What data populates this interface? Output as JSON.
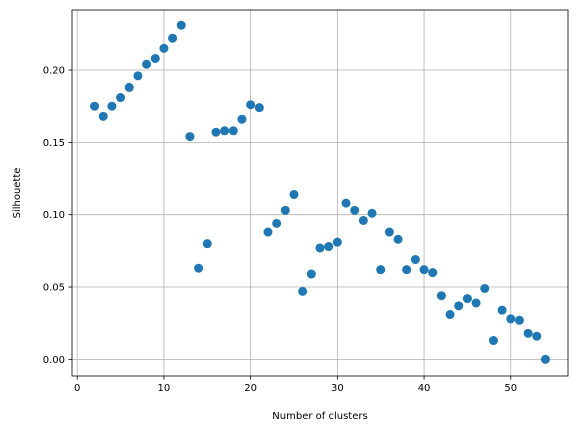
{
  "chart_data": {
    "type": "scatter",
    "title": "",
    "xlabel": "Number of clusters",
    "ylabel": "Silhouette",
    "xlim": [
      -0.6,
      56.6
    ],
    "ylim": [
      -0.0115,
      0.2415
    ],
    "grid": true,
    "x_ticks": [
      0,
      10,
      20,
      30,
      40,
      50
    ],
    "x_tick_labels": [
      "0",
      "10",
      "20",
      "30",
      "40",
      "50"
    ],
    "y_ticks": [
      0.0,
      0.05,
      0.1,
      0.15,
      0.2
    ],
    "y_tick_labels": [
      "0.00",
      "0.05",
      "0.10",
      "0.15",
      "0.20"
    ],
    "marker_color": "#1f77b4",
    "series": [
      {
        "x": [
          2,
          3,
          4,
          5,
          6,
          7,
          8,
          9,
          10,
          11,
          12,
          13,
          14,
          15,
          16,
          17,
          18,
          19,
          20,
          21,
          22,
          23,
          24,
          25,
          26,
          27,
          28,
          29,
          30,
          31,
          32,
          33,
          34,
          35,
          36,
          37,
          38,
          39,
          40,
          41,
          42,
          43,
          44,
          45,
          46,
          47,
          48,
          49,
          50,
          51,
          52,
          53,
          54
        ],
        "y": [
          0.175,
          0.168,
          0.175,
          0.181,
          0.188,
          0.196,
          0.204,
          0.208,
          0.215,
          0.222,
          0.231,
          0.154,
          0.063,
          0.08,
          0.157,
          0.158,
          0.158,
          0.166,
          0.176,
          0.174,
          0.088,
          0.094,
          0.103,
          0.114,
          0.047,
          0.059,
          0.077,
          0.078,
          0.081,
          0.108,
          0.103,
          0.096,
          0.101,
          0.062,
          0.088,
          0.083,
          0.062,
          0.069,
          0.062,
          0.06,
          0.044,
          0.031,
          0.037,
          0.042,
          0.039,
          0.049,
          0.013,
          0.034,
          0.028,
          0.027,
          0.018,
          0.016,
          0.0
        ]
      }
    ]
  }
}
